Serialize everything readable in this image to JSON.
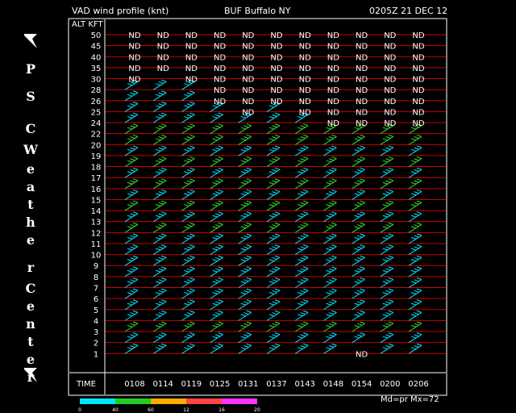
{
  "header": {
    "left": "VAD wind profile (knt)",
    "center": "BUF Buffalo NY",
    "right": "0205Z 21 DEC 12"
  },
  "sidebar": {
    "letters": [
      "P",
      "S",
      "C",
      "W",
      "e",
      "a",
      "t",
      "h",
      "e",
      "r",
      "C",
      "e",
      "n",
      "t",
      "e",
      "r"
    ]
  },
  "footer": {
    "mode_text": "Md=pr Mx=72"
  },
  "color_scale": {
    "labels": [
      "0",
      "40",
      "60",
      "12",
      "16",
      "20"
    ],
    "colors": [
      "#00e5ff",
      "#22cc22",
      "#ffaa00",
      "#ff4444",
      "#ff33ff"
    ]
  },
  "chart_data": {
    "type": "wind-barb-profile",
    "ylabel": "ALT KFT",
    "xlabel": "TIME",
    "altitudes": [
      "50",
      "45",
      "40",
      "35",
      "30",
      "28",
      "26",
      "25",
      "24",
      "22",
      "20",
      "19",
      "18",
      "17",
      "16",
      "15",
      "14",
      "13",
      "12",
      "11",
      "10",
      "9",
      "8",
      "7",
      "6",
      "5",
      "4",
      "3",
      "2",
      "1"
    ],
    "times": [
      "0108",
      "0114",
      "0119",
      "0125",
      "0131",
      "0137",
      "0143",
      "0148",
      "0154",
      "0200",
      "0206"
    ],
    "no_data_label": "ND",
    "no_data": [
      [
        "50",
        [
          0,
          1,
          2,
          3,
          4,
          5,
          6,
          7,
          8,
          9,
          10
        ]
      ],
      [
        "45",
        [
          0,
          1,
          2,
          3,
          4,
          5,
          6,
          7,
          8,
          9,
          10
        ]
      ],
      [
        "40",
        [
          0,
          1,
          2,
          3,
          4,
          5,
          6,
          7,
          8,
          9,
          10
        ]
      ],
      [
        "35",
        [
          0,
          1,
          2,
          3,
          4,
          5,
          6,
          7,
          8,
          9,
          10
        ]
      ],
      [
        "30",
        [
          0,
          2,
          3,
          4,
          5,
          6,
          7,
          8,
          9,
          10
        ]
      ],
      [
        "28",
        [
          3,
          4,
          5,
          6,
          7,
          8,
          9,
          10
        ]
      ],
      [
        "26",
        [
          3,
          4,
          5,
          6,
          7,
          8,
          9,
          10
        ]
      ],
      [
        "25",
        [
          4,
          6,
          7,
          8,
          9,
          10
        ]
      ],
      [
        "24",
        [
          7,
          8,
          9,
          10
        ]
      ],
      [
        "1",
        [
          8
        ]
      ]
    ],
    "barb_color_by_altitude": {
      "22": "#33dd33",
      "20": "#33dd33",
      "18": "#33dd33",
      "16": "#33dd33",
      "14": "#33dd33",
      "12": "#33dd33",
      "3": "#33dd33"
    },
    "default_barb_color": "#00e5ff"
  }
}
